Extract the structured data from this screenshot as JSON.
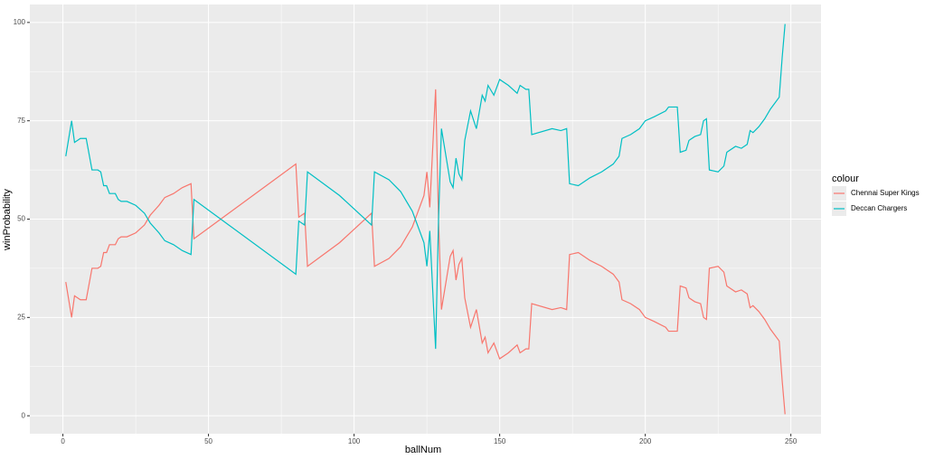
{
  "chart_data": {
    "type": "line",
    "x_label": "ballNum",
    "y_label": "winProbability",
    "legend_title": "colour",
    "legend_position": "right",
    "grid": true,
    "x": [
      1,
      3,
      4,
      6,
      8,
      10,
      12,
      13,
      14,
      15,
      16,
      18,
      19,
      20,
      22,
      25,
      28,
      30,
      33,
      35,
      38,
      41,
      44,
      45,
      80,
      81,
      83,
      84,
      95,
      106,
      107,
      112,
      116,
      120,
      124,
      125,
      126,
      128,
      129,
      130,
      132,
      133,
      134,
      135,
      136,
      137,
      138,
      140,
      142,
      144,
      145,
      146,
      148,
      150,
      153,
      156,
      157,
      159,
      160,
      161,
      168,
      171,
      173,
      174,
      177,
      181,
      185,
      189,
      191,
      192,
      195,
      198,
      200,
      203,
      207,
      208,
      211,
      212,
      214,
      215,
      217,
      219,
      220,
      221,
      222,
      225,
      227,
      228,
      231,
      233,
      235,
      236,
      237,
      239,
      241,
      243,
      246,
      247,
      248
    ],
    "series": [
      {
        "name": "Chennai Super Kings",
        "color": "#F8766D",
        "values": [
          34,
          25,
          30.5,
          29.5,
          29.5,
          37.5,
          37.5,
          38,
          41.5,
          41.5,
          43.5,
          43.5,
          45,
          45.5,
          45.5,
          46.5,
          48.5,
          51,
          53.5,
          55.5,
          56.5,
          58,
          59,
          45,
          64,
          50.5,
          51.5,
          38,
          44,
          51.5,
          38,
          40,
          43,
          48,
          56,
          62,
          53,
          83,
          50,
          27,
          36,
          40.5,
          42,
          34.5,
          38.5,
          40,
          30,
          22.5,
          27,
          18.5,
          20,
          16,
          18.5,
          14.5,
          16,
          18,
          16,
          17,
          17,
          28.5,
          27,
          27.5,
          27,
          41,
          41.5,
          39.5,
          38,
          36,
          34,
          29.5,
          28.5,
          27,
          25,
          24,
          22.5,
          21.5,
          21.5,
          33,
          32.5,
          30,
          29,
          28.5,
          25,
          24.5,
          37.5,
          38,
          36.5,
          33,
          31.5,
          32,
          31,
          27.5,
          28,
          26.5,
          24.5,
          22,
          19,
          9,
          0.4
        ]
      },
      {
        "name": "Deccan Chargers",
        "color": "#00BFC4",
        "values": [
          66,
          75,
          69.5,
          70.5,
          70.5,
          62.5,
          62.5,
          62,
          58.5,
          58.5,
          56.5,
          56.5,
          55,
          54.5,
          54.5,
          53.5,
          51.5,
          49,
          46.5,
          44.5,
          43.5,
          42,
          41,
          55,
          36,
          49.5,
          48.5,
          62,
          56,
          48.5,
          62,
          60,
          57,
          52,
          44,
          38,
          47,
          17,
          50,
          73,
          64,
          59.5,
          58,
          65.5,
          61.5,
          60,
          70,
          77.5,
          73,
          81.5,
          80,
          84,
          81.5,
          85.5,
          84,
          82,
          84,
          83,
          83,
          71.5,
          73,
          72.5,
          73,
          59,
          58.5,
          60.5,
          62,
          64,
          66,
          70.5,
          71.5,
          73,
          75,
          76,
          77.5,
          78.5,
          78.5,
          67,
          67.5,
          70,
          71,
          71.5,
          75,
          75.5,
          62.5,
          62,
          63.5,
          67,
          68.5,
          68,
          69,
          72.5,
          72,
          73.5,
          75.5,
          78,
          81,
          91,
          99.6
        ]
      }
    ],
    "xlim": [
      -11.35,
      260.35
    ],
    "ylim": [
      -4.56,
      104.56
    ],
    "xticks": [
      0,
      50,
      100,
      150,
      200,
      250
    ],
    "yticks": [
      0,
      25,
      50,
      75,
      100
    ]
  }
}
